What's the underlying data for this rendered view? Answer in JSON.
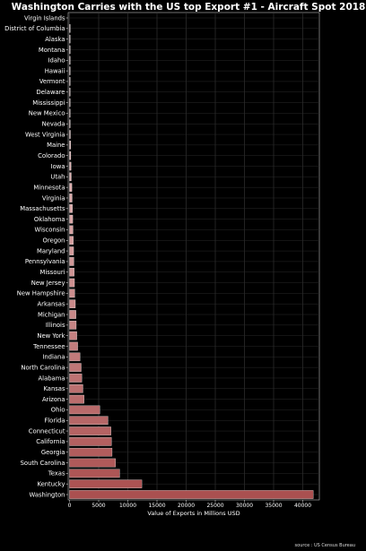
{
  "chart_data": {
    "type": "bar",
    "orientation": "horizontal",
    "title": "Washington Carries with the US top Export #1 - Aircraft Spot 2018",
    "xlabel": "Value of Exports in Millions USD",
    "ylabel": "",
    "xlim": [
      0,
      44000
    ],
    "xticks": [
      0,
      5000,
      10000,
      15000,
      20000,
      25000,
      30000,
      35000,
      40000
    ],
    "grid": true,
    "source": "source : US Census Bureau",
    "categories": [
      "Virgin Islands",
      "District of Columbia",
      "Alaska",
      "Montana",
      "Idaho",
      "Hawaii",
      "Vermont",
      "Delaware",
      "Mississippi",
      "New Mexico",
      "Nevada",
      "West Virginia",
      "Maine",
      "Colorado",
      "Iowa",
      "Utah",
      "Minnesota",
      "Virginia",
      "Massachusetts",
      "Oklahoma",
      "Wisconsin",
      "Oregon",
      "Maryland",
      "Pennsylvania",
      "Missouri",
      "New Jersey",
      "New Hampshire",
      "Arkansas",
      "Michigan",
      "Illinois",
      "New York",
      "Tennessee",
      "Indiana",
      "North Carolina",
      "Alabama",
      "Kansas",
      "Arizona",
      "Ohio",
      "Florida",
      "Connecticut",
      "California",
      "Georgia",
      "South Carolina",
      "Texas",
      "Kentucky",
      "Washington"
    ],
    "values": [
      0,
      2,
      8,
      10,
      20,
      25,
      30,
      40,
      50,
      60,
      120,
      150,
      200,
      220,
      260,
      300,
      400,
      450,
      500,
      550,
      600,
      650,
      700,
      750,
      800,
      850,
      900,
      1000,
      1100,
      1150,
      1250,
      1400,
      1800,
      2000,
      2100,
      2300,
      2500,
      5200,
      6600,
      7100,
      7200,
      7300,
      7900,
      8600,
      12400,
      41800
    ]
  }
}
